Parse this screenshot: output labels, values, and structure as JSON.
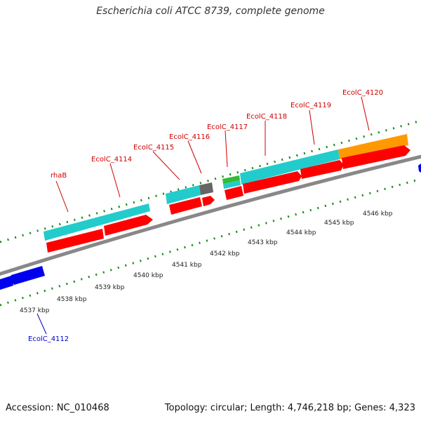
{
  "title": "Escherichia coli ATCC 8739, complete genome",
  "footer": {
    "accession": "Accession: NC_010468",
    "summary": "Topology: circular; Length: 4,746,218 bp; Genes: 4,323"
  },
  "colors": {
    "backbone": "#888888",
    "plus_strand_cds": "#ff0000",
    "minus_strand_cds": "#0000ee",
    "cog_cyan": "#22cccc",
    "cog_gray": "#666666",
    "cog_green": "#33bb33",
    "cog_orange": "#ff9900",
    "tick": "#1a8a1a",
    "label_plus": "#cc0000",
    "label_minus": "#0000cc"
  },
  "kbp_ticks": [
    "4537 kbp",
    "4538 kbp",
    "4539 kbp",
    "4540 kbp",
    "4541 kbp",
    "4542 kbp",
    "4543 kbp",
    "4544 kbp",
    "4545 kbp",
    "4546 kbp"
  ],
  "genes": [
    {
      "name": "rhaB",
      "strand": "+"
    },
    {
      "name": "EcolC_4114",
      "strand": "+"
    },
    {
      "name": "EcolC_4115",
      "strand": "+"
    },
    {
      "name": "EcolC_4116",
      "strand": "+"
    },
    {
      "name": "EcolC_4117",
      "strand": "+"
    },
    {
      "name": "EcolC_4118",
      "strand": "+"
    },
    {
      "name": "EcolC_4119",
      "strand": "+"
    },
    {
      "name": "EcolC_4120",
      "strand": "+"
    },
    {
      "name": "EcolC_4112",
      "strand": "-"
    }
  ]
}
